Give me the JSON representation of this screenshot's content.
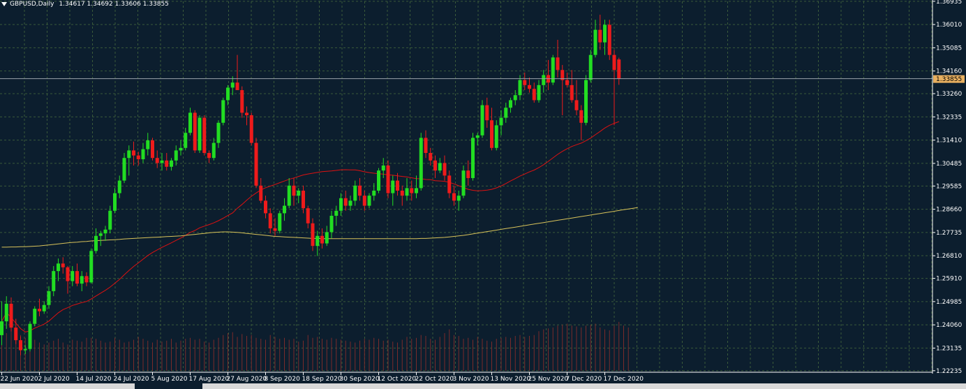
{
  "symbol": "GBPUSD,Daily",
  "ohlc": "1.34617 1.34692 1.33606 1.33855",
  "current_price": "1.33855",
  "colors": {
    "background": "#0c1e2e",
    "grid": "#3a5a3a",
    "bull": "#22dd22",
    "bear": "#ee1b1b",
    "ma_fast": "#dd1111",
    "ma_slow": "#d8c25a",
    "volume": "#7a2b2b",
    "axis": "#ffffff",
    "label_bg": "#e8b060"
  },
  "chart_data": {
    "type": "candlestick",
    "ylim": [
      1.2223,
      1.3693
    ],
    "y_ticks": [
      "1.36935",
      "1.36010",
      "1.35085",
      "1.34160",
      "1.33260",
      "1.32335",
      "1.31410",
      "1.30485",
      "1.29585",
      "1.28660",
      "1.27735",
      "1.26810",
      "1.25910",
      "1.24985",
      "1.24060",
      "1.23135",
      "1.22235"
    ],
    "x_labels": [
      "22 Jun 2020",
      "2 Jul 2020",
      "14 Jul 2020",
      "24 Jul 2020",
      "5 Aug 2020",
      "17 Aug 2020",
      "27 Aug 2020",
      "8 Sep 2020",
      "18 Sep 2020",
      "30 Sep 2020",
      "12 Oct 2020",
      "22 Oct 2020",
      "3 Nov 2020",
      "13 Nov 2020",
      "25 Nov 2020",
      "7 Dec 2020",
      "17 Dec 2020"
    ],
    "x_label_index": [
      0,
      8,
      16,
      24,
      32,
      40,
      48,
      56,
      64,
      72,
      80,
      88,
      96,
      104,
      112,
      120,
      128
    ],
    "candles": [
      [
        1.2365,
        1.25,
        1.2325,
        1.242
      ],
      [
        1.242,
        1.252,
        1.239,
        1.249
      ],
      [
        1.249,
        1.2515,
        1.238,
        1.2395
      ],
      [
        1.2395,
        1.243,
        1.233,
        1.2345
      ],
      [
        1.2345,
        1.236,
        1.2285,
        1.2305
      ],
      [
        1.2305,
        1.2325,
        1.229,
        1.231
      ],
      [
        1.231,
        1.242,
        1.23,
        1.241
      ],
      [
        1.241,
        1.248,
        1.24,
        1.247
      ],
      [
        1.247,
        1.251,
        1.244,
        1.246
      ],
      [
        1.246,
        1.25,
        1.245,
        1.2485
      ],
      [
        1.2485,
        1.256,
        1.247,
        1.254
      ],
      [
        1.254,
        1.264,
        1.252,
        1.262
      ],
      [
        1.262,
        1.267,
        1.258,
        1.265
      ],
      [
        1.265,
        1.2675,
        1.261,
        1.2635
      ],
      [
        1.2635,
        1.264,
        1.253,
        1.258
      ],
      [
        1.258,
        1.264,
        1.256,
        1.262
      ],
      [
        1.262,
        1.265,
        1.256,
        1.257
      ],
      [
        1.257,
        1.262,
        1.254,
        1.26
      ],
      [
        1.26,
        1.2615,
        1.256,
        1.2575
      ],
      [
        1.2575,
        1.271,
        1.257,
        1.27
      ],
      [
        1.27,
        1.279,
        1.269,
        1.276
      ],
      [
        1.276,
        1.278,
        1.272,
        1.277
      ],
      [
        1.277,
        1.28,
        1.274,
        1.2785
      ],
      [
        1.2785,
        1.288,
        1.277,
        1.286
      ],
      [
        1.286,
        1.295,
        1.285,
        1.293
      ],
      [
        1.293,
        1.3,
        1.291,
        1.298
      ],
      [
        1.298,
        1.309,
        1.297,
        1.307
      ],
      [
        1.307,
        1.312,
        1.3,
        1.31
      ],
      [
        1.31,
        1.3135,
        1.304,
        1.308
      ],
      [
        1.308,
        1.3095,
        1.304,
        1.3065
      ],
      [
        1.3065,
        1.313,
        1.305,
        1.3105
      ],
      [
        1.3105,
        1.317,
        1.308,
        1.314
      ],
      [
        1.314,
        1.315,
        1.306,
        1.307
      ],
      [
        1.307,
        1.31,
        1.303,
        1.305
      ],
      [
        1.305,
        1.309,
        1.302,
        1.306
      ],
      [
        1.306,
        1.309,
        1.302,
        1.3035
      ],
      [
        1.3035,
        1.307,
        1.302,
        1.306
      ],
      [
        1.306,
        1.312,
        1.304,
        1.31
      ],
      [
        1.31,
        1.314,
        1.308,
        1.311
      ],
      [
        1.311,
        1.319,
        1.31,
        1.317
      ],
      [
        1.317,
        1.327,
        1.316,
        1.325
      ],
      [
        1.325,
        1.326,
        1.309,
        1.31
      ],
      [
        1.31,
        1.324,
        1.309,
        1.323
      ],
      [
        1.323,
        1.324,
        1.308,
        1.309
      ],
      [
        1.309,
        1.31,
        1.305,
        1.307
      ],
      [
        1.307,
        1.315,
        1.306,
        1.313
      ],
      [
        1.313,
        1.322,
        1.311,
        1.321
      ],
      [
        1.321,
        1.331,
        1.32,
        1.33
      ],
      [
        1.33,
        1.336,
        1.328,
        1.335
      ],
      [
        1.335,
        1.3395,
        1.332,
        1.337
      ],
      [
        1.337,
        1.348,
        1.334,
        1.334
      ],
      [
        1.334,
        1.3355,
        1.323,
        1.325
      ],
      [
        1.325,
        1.3275,
        1.32,
        1.324
      ],
      [
        1.324,
        1.325,
        1.312,
        1.313
      ],
      [
        1.313,
        1.315,
        1.295,
        1.296
      ],
      [
        1.296,
        1.299,
        1.289,
        1.29
      ],
      [
        1.29,
        1.292,
        1.283,
        1.285
      ],
      [
        1.285,
        1.287,
        1.277,
        1.279
      ],
      [
        1.279,
        1.283,
        1.276,
        1.278
      ],
      [
        1.278,
        1.286,
        1.277,
        1.285
      ],
      [
        1.285,
        1.291,
        1.282,
        1.288
      ],
      [
        1.288,
        1.299,
        1.287,
        1.296
      ],
      [
        1.296,
        1.299,
        1.288,
        1.292
      ],
      [
        1.292,
        1.295,
        1.289,
        1.294
      ],
      [
        1.294,
        1.296,
        1.285,
        1.287
      ],
      [
        1.287,
        1.288,
        1.279,
        1.281
      ],
      [
        1.281,
        1.283,
        1.27,
        1.272
      ],
      [
        1.272,
        1.278,
        1.268,
        1.276
      ],
      [
        1.276,
        1.279,
        1.271,
        1.273
      ],
      [
        1.273,
        1.28,
        1.272,
        1.2775
      ],
      [
        1.2775,
        1.286,
        1.275,
        1.284
      ],
      [
        1.284,
        1.288,
        1.28,
        1.286
      ],
      [
        1.286,
        1.293,
        1.284,
        1.291
      ],
      [
        1.291,
        1.294,
        1.286,
        1.288
      ],
      [
        1.288,
        1.292,
        1.286,
        1.29
      ],
      [
        1.29,
        1.298,
        1.288,
        1.296
      ],
      [
        1.296,
        1.299,
        1.29,
        1.292
      ],
      [
        1.292,
        1.294,
        1.286,
        1.288
      ],
      [
        1.288,
        1.293,
        1.287,
        1.292
      ],
      [
        1.292,
        1.297,
        1.29,
        1.294
      ],
      [
        1.294,
        1.303,
        1.293,
        1.302
      ],
      [
        1.302,
        1.307,
        1.299,
        1.304
      ],
      [
        1.304,
        1.306,
        1.291,
        1.293
      ],
      [
        1.293,
        1.3,
        1.288,
        1.298
      ],
      [
        1.298,
        1.301,
        1.292,
        1.294
      ],
      [
        1.294,
        1.296,
        1.288,
        1.292
      ],
      [
        1.292,
        1.299,
        1.29,
        1.295
      ],
      [
        1.295,
        1.298,
        1.29,
        1.293
      ],
      [
        1.293,
        1.3,
        1.291,
        1.295
      ],
      [
        1.295,
        1.317,
        1.294,
        1.315
      ],
      [
        1.315,
        1.318,
        1.307,
        1.309
      ],
      [
        1.309,
        1.311,
        1.304,
        1.306
      ],
      [
        1.306,
        1.308,
        1.299,
        1.302
      ],
      [
        1.302,
        1.307,
        1.301,
        1.305
      ],
      [
        1.305,
        1.308,
        1.298,
        1.3
      ],
      [
        1.3,
        1.302,
        1.291,
        1.293
      ],
      [
        1.293,
        1.296,
        1.288,
        1.29
      ],
      [
        1.29,
        1.294,
        1.286,
        1.292
      ],
      [
        1.292,
        1.304,
        1.291,
        1.302
      ],
      [
        1.302,
        1.306,
        1.296,
        1.299
      ],
      [
        1.299,
        1.317,
        1.298,
        1.315
      ],
      [
        1.315,
        1.317,
        1.312,
        1.316
      ],
      [
        1.316,
        1.33,
        1.315,
        1.328
      ],
      [
        1.328,
        1.331,
        1.319,
        1.322
      ],
      [
        1.322,
        1.327,
        1.31,
        1.311
      ],
      [
        1.311,
        1.322,
        1.31,
        1.32
      ],
      [
        1.32,
        1.326,
        1.316,
        1.323
      ],
      [
        1.323,
        1.329,
        1.321,
        1.327
      ],
      [
        1.327,
        1.331,
        1.325,
        1.33
      ],
      [
        1.33,
        1.334,
        1.328,
        1.332
      ],
      [
        1.332,
        1.34,
        1.33,
        1.338
      ],
      [
        1.338,
        1.341,
        1.334,
        1.336
      ],
      [
        1.336,
        1.339,
        1.333,
        1.3345
      ],
      [
        1.3345,
        1.337,
        1.329,
        1.33
      ],
      [
        1.33,
        1.338,
        1.329,
        1.336
      ],
      [
        1.336,
        1.342,
        1.333,
        1.34
      ],
      [
        1.34,
        1.346,
        1.334,
        1.337
      ],
      [
        1.337,
        1.348,
        1.336,
        1.347
      ],
      [
        1.347,
        1.354,
        1.339,
        1.342
      ],
      [
        1.342,
        1.344,
        1.324,
        1.338
      ],
      [
        1.338,
        1.341,
        1.335,
        1.336
      ],
      [
        1.336,
        1.342,
        1.329,
        1.33
      ],
      [
        1.33,
        1.338,
        1.324,
        1.326
      ],
      [
        1.326,
        1.328,
        1.314,
        1.321
      ],
      [
        1.321,
        1.34,
        1.32,
        1.338
      ],
      [
        1.338,
        1.35,
        1.337,
        1.348
      ],
      [
        1.348,
        1.362,
        1.347,
        1.358
      ],
      [
        1.358,
        1.364,
        1.35,
        1.353
      ],
      [
        1.353,
        1.362,
        1.348,
        1.36
      ],
      [
        1.36,
        1.362,
        1.346,
        1.348
      ],
      [
        1.348,
        1.35,
        1.32,
        1.342
      ],
      [
        1.3462,
        1.3469,
        1.3361,
        1.3386
      ]
    ],
    "ma_fast": [
      1.242,
      1.2418,
      1.2416,
      1.2418,
      1.242,
      1.2422,
      1.2424,
      1.2427,
      1.243,
      1.2435,
      1.244,
      1.245,
      1.247,
      1.25,
      1.253,
      1.257,
      1.261,
      1.265,
      1.269,
      1.2725,
      1.2755,
      1.278,
      1.28,
      1.2825,
      1.285,
      1.288,
      1.2915,
      1.295,
      1.2985,
      1.301,
      1.3035,
      1.306,
      1.3085,
      1.311,
      1.313,
      1.315,
      1.3165,
      1.318,
      1.319,
      1.32,
      1.321,
      1.322,
      1.323,
      1.324,
      1.325,
      1.3265,
      1.328,
      1.33,
      1.332,
      1.3335,
      1.335,
      1.336,
      1.337,
      1.3375,
      1.338,
      1.3383,
      1.3385,
      1.3386,
      1.3387,
      1.3388,
      1.339,
      1.3392,
      1.3395,
      1.3397,
      1.34,
      1.3402,
      1.3405,
      1.3408,
      1.341,
      1.3413,
      1.3415,
      1.3418,
      1.342,
      1.3423,
      1.3425,
      1.3428,
      1.343,
      1.3432,
      1.3435,
      1.3437,
      1.344,
      1.3442,
      1.3445,
      1.3447,
      1.345,
      1.3452,
      1.3455,
      1.3457,
      1.346,
      1.3462,
      1.3465,
      1.3467,
      1.347,
      1.3472,
      1.3475,
      1.3477,
      1.348,
      1.3482,
      1.3485,
      1.3487,
      1.349,
      1.3492,
      1.3495,
      1.3497,
      1.35,
      1.3502,
      1.3505,
      1.3507,
      1.351,
      1.3512,
      1.3515,
      1.3517,
      1.352,
      1.3522,
      1.3525,
      1.3527,
      1.353,
      1.3532,
      1.3535,
      1.3537,
      1.354,
      1.3542,
      1.3545,
      1.3547,
      1.355,
      1.3552,
      1.3555,
      1.3557,
      1.356,
      1.3562,
      1.3565,
      1.3567,
      1.357,
      1.3572
    ],
    "ma_slow": [
      1.2715,
      1.2715,
      1.2716,
      1.2716,
      1.2717,
      1.2717,
      1.2718,
      1.2719,
      1.272,
      1.2722,
      1.2724,
      1.2726,
      1.2728,
      1.273,
      1.2732,
      1.2734,
      1.2735,
      1.2737,
      1.2738,
      1.274,
      1.2741,
      1.2742,
      1.2743,
      1.2744,
      1.2745,
      1.2746,
      1.2748,
      1.2749,
      1.275,
      1.2751,
      1.2752,
      1.2753,
      1.2754,
      1.2755,
      1.2756,
      1.2757,
      1.2758,
      1.2759,
      1.276,
      1.2762,
      1.2764,
      1.2766,
      1.2768,
      1.277,
      1.2772,
      1.2774,
      1.2775,
      1.2776,
      1.2776,
      1.2775,
      1.2774,
      1.2772,
      1.277,
      1.2768,
      1.2766,
      1.2764,
      1.2762,
      1.276,
      1.2758,
      1.2757,
      1.2756,
      1.2755,
      1.2754,
      1.2753,
      1.2752,
      1.2751,
      1.275,
      1.275,
      1.2749,
      1.2749,
      1.2749,
      1.2749,
      1.2749,
      1.2749,
      1.2749,
      1.2749,
      1.2749,
      1.2749,
      1.2749,
      1.2749,
      1.2749,
      1.2749,
      1.2749,
      1.2749,
      1.2749,
      1.2749,
      1.2749,
      1.2749,
      1.2749,
      1.275,
      1.275,
      1.2751,
      1.2752,
      1.2753,
      1.2754,
      1.2756,
      1.2758,
      1.276,
      1.2762,
      1.2765,
      1.2768,
      1.2771,
      1.2774,
      1.2777,
      1.278,
      1.2783,
      1.2786,
      1.2789,
      1.2792,
      1.2795,
      1.2798,
      1.2801,
      1.2804,
      1.2807,
      1.281,
      1.2813,
      1.2816,
      1.2819,
      1.2822,
      1.2825,
      1.2828,
      1.2831,
      1.2834,
      1.2837,
      1.284,
      1.2843,
      1.2846,
      1.2849,
      1.2852,
      1.2855,
      1.2858,
      1.2861,
      1.2864,
      1.2867,
      1.287,
      1.2873
    ],
    "volume": [
      38,
      40,
      42,
      45,
      38,
      35,
      28,
      33,
      30,
      28,
      30,
      32,
      34,
      30,
      28,
      33,
      32,
      31,
      35,
      35,
      34,
      32,
      30,
      31,
      35,
      33,
      30,
      31,
      33,
      36,
      34,
      32,
      30,
      33,
      31,
      32,
      34,
      30,
      32,
      34,
      35,
      33,
      34,
      31,
      30,
      33,
      35,
      38,
      40,
      41,
      36,
      39,
      37,
      38,
      35,
      34,
      33,
      38,
      36,
      34,
      35,
      33,
      34,
      31,
      32,
      38,
      35,
      36,
      34,
      33,
      35,
      34,
      33,
      32,
      31,
      30,
      32,
      34,
      33,
      35,
      34,
      32,
      33,
      31,
      30,
      33,
      36,
      34,
      35,
      38,
      37,
      34,
      33,
      36,
      40,
      44,
      38,
      37,
      34,
      35,
      33,
      36,
      34,
      32,
      31,
      34,
      35,
      36,
      35,
      37,
      38,
      36,
      37,
      38,
      42,
      44,
      45,
      46,
      48,
      49,
      50,
      48,
      47,
      46,
      48,
      49,
      50,
      46,
      44,
      43,
      48,
      52,
      48,
      46
    ]
  }
}
